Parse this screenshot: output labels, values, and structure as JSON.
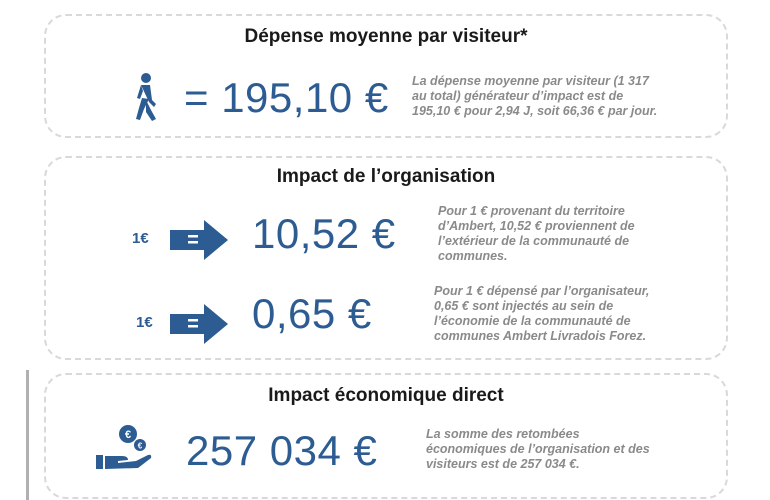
{
  "colors": {
    "accent": "#2c5c92",
    "title": "#1a1a1a",
    "desc": "#8a8a8a",
    "border": "#d9d9d9"
  },
  "visitor": {
    "title": "Dépense moyenne par visiteur*",
    "icon": "walking-person-icon",
    "value": "= 195,10 €",
    "description": [
      "La dépense moyenne par visiteur (1 317",
      "au total) générateur d’impact est de",
      "195,10 € pour 2,94 J, soit 66,36 € par jour."
    ]
  },
  "organisation": {
    "title": "Impact de l’organisation",
    "row1": {
      "unit": "1€",
      "icon": "equals-arrow-icon",
      "value": "10,52 €",
      "description": [
        "Pour 1 € provenant  du territoire",
        "d’Ambert, 10,52 € proviennent de",
        "l’extérieur  de la communauté de",
        "communes."
      ]
    },
    "row2": {
      "unit": "1€",
      "icon": "equals-arrow-icon",
      "value": "0,65 €",
      "description": [
        "Pour 1 € dépensé par l’organisateur,",
        "0,65 € sont injectés au sein de",
        "l’économie de la communauté de",
        "communes Ambert Livradois Forez."
      ]
    }
  },
  "direct": {
    "title": "Impact économique direct",
    "icon": "hand-coins-icon",
    "value": "257 034 €",
    "description": [
      "La somme des retombées",
      "économiques de l’organisation et des",
      "visiteurs est de 257 034 €."
    ]
  }
}
